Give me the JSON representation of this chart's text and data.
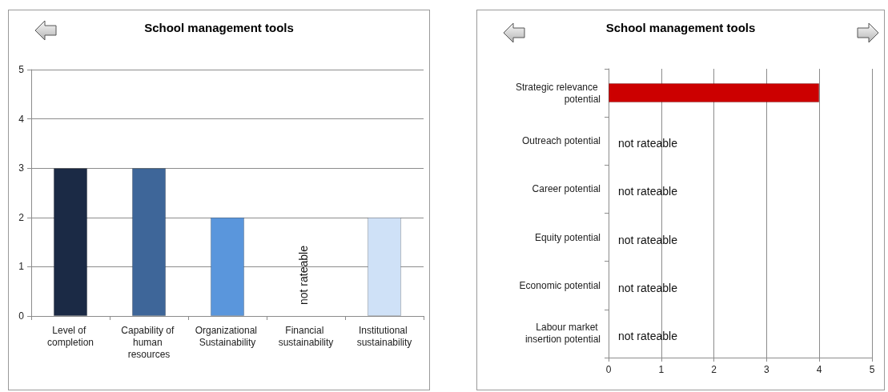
{
  "chart_data": [
    {
      "type": "bar",
      "title": "School management tools",
      "categories": [
        "Level of completion",
        "Capability of human resources",
        "Organizational Sustainability",
        "Financial sustainability",
        "Institutional sustainability"
      ],
      "values": [
        3,
        3,
        2,
        null,
        2
      ],
      "colors": [
        "#1b2a45",
        "#3e6699",
        "#5a96dc",
        null,
        "#cfe1f7"
      ],
      "ylim": [
        0,
        5
      ],
      "yticks": [
        0,
        1,
        2,
        3,
        4,
        5
      ],
      "grid": "y",
      "annotations": [
        "not rateable"
      ]
    },
    {
      "type": "bar",
      "orientation": "horizontal",
      "title": "School management tools",
      "categories": [
        "Strategic relevance potential",
        "Outreach potential",
        "Career potential",
        "Equity potential",
        "Economic potential",
        "Labour market insertion potential"
      ],
      "values": [
        4,
        null,
        null,
        null,
        null,
        null
      ],
      "color": "#cc0000",
      "xlim": [
        0,
        5
      ],
      "xticks": [
        0,
        1,
        2,
        3,
        4,
        5
      ],
      "grid": "x",
      "annotations": [
        "not rateable",
        "not rateable",
        "not rateable",
        "not rateable",
        "not rateable"
      ]
    }
  ]
}
